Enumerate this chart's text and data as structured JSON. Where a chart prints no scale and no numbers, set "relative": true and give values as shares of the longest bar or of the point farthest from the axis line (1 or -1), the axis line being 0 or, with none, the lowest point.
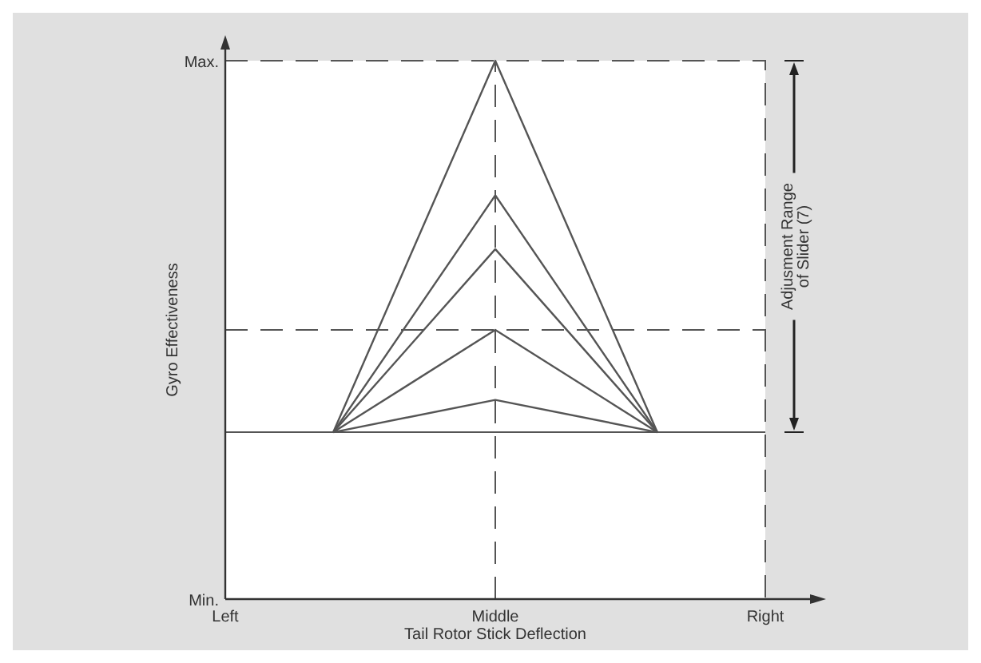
{
  "chart_data": {
    "type": "line",
    "xlabel": "Tail Rotor Stick Deflection",
    "ylabel": "Gyro Effectiveness",
    "relative": true,
    "categories": [
      "Left",
      null,
      null,
      null,
      null,
      "Middle",
      null,
      null,
      null,
      null,
      "Right"
    ],
    "grid": false,
    "marker": "none",
    "line_style": "solid",
    "series": [
      {
        "color": "#555555",
        "values": [
          null,
          null,
          0.31,
          null,
          null,
          1.0,
          null,
          null,
          0.31,
          null,
          null
        ]
      },
      {
        "color": "#555555",
        "values": [
          null,
          null,
          0.31,
          null,
          null,
          0.75,
          null,
          null,
          0.31,
          null,
          null
        ]
      },
      {
        "color": "#555555",
        "values": [
          null,
          null,
          0.31,
          null,
          null,
          0.65,
          null,
          null,
          0.31,
          null,
          null
        ]
      },
      {
        "color": "#555555",
        "values": [
          null,
          null,
          0.31,
          null,
          null,
          0.5,
          null,
          null,
          0.31,
          null,
          null
        ]
      },
      {
        "color": "#555555",
        "values": [
          null,
          null,
          0.31,
          null,
          null,
          0.37,
          null,
          null,
          0.31,
          null,
          null
        ]
      }
    ],
    "ref_lines": [
      {
        "axis": "x",
        "value": "Middle",
        "line_style": "dashed"
      },
      {
        "axis": "y",
        "value": 0.5,
        "line_style": "dashed"
      },
      {
        "axis": "y",
        "value": 0.31,
        "line_style": "solid"
      }
    ],
    "annotations": [
      "Min.",
      "Max.",
      "Adjusment Range\nof Slider (7)"
    ]
  }
}
